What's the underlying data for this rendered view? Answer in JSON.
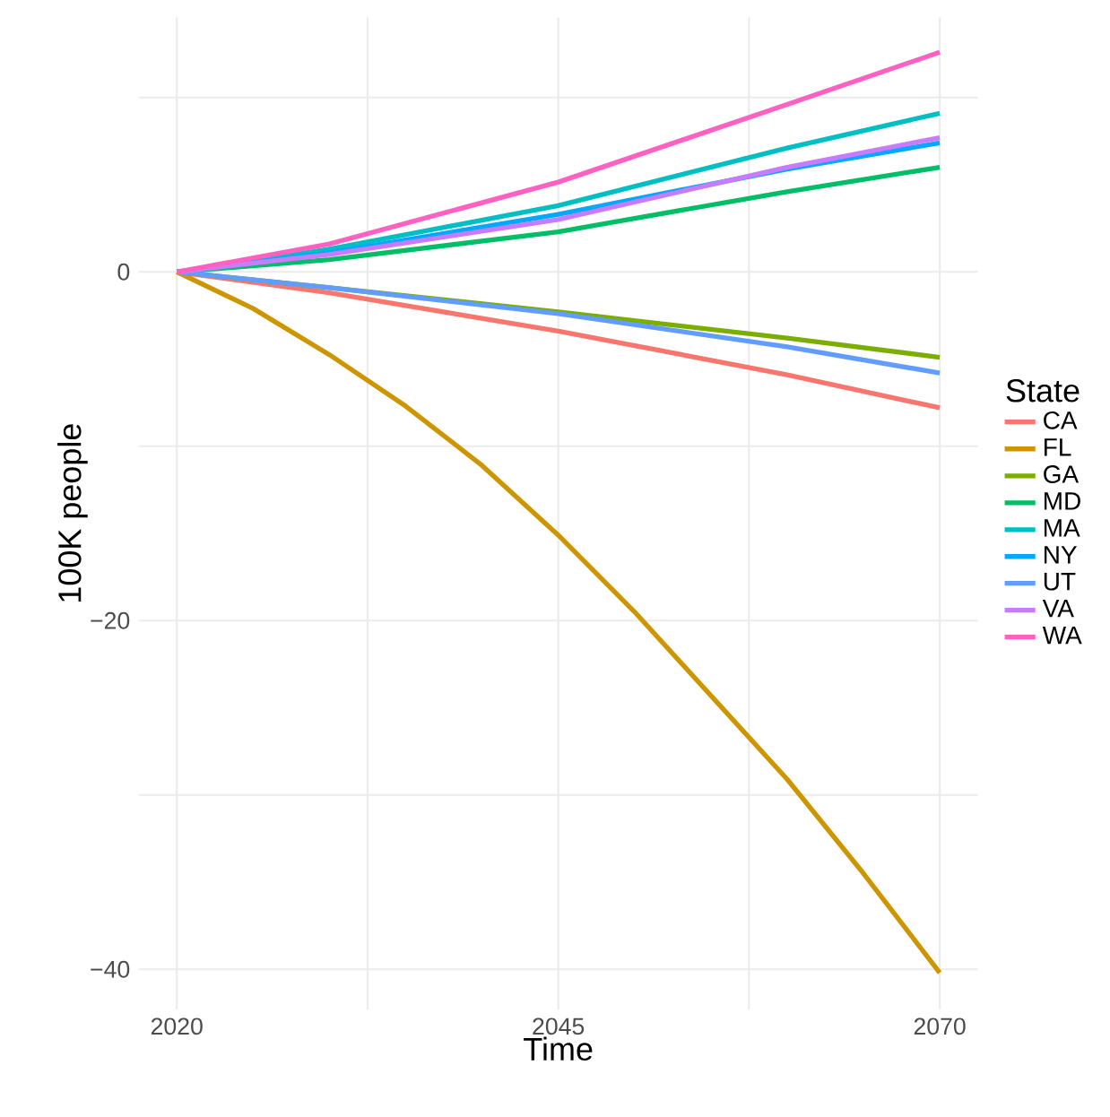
{
  "chart_data": {
    "type": "line",
    "xlabel": "Time",
    "ylabel": "100K people",
    "legend_title": "State",
    "legend": "right",
    "grid": true,
    "line_style": "solid",
    "marker": "none",
    "xlim": [
      2017.5,
      2072.5
    ],
    "ylim": [
      -42.3,
      14.6
    ],
    "xticks": [
      2020,
      {
        "value": 2032.5,
        "label": null
      },
      2045,
      {
        "value": 2057.5,
        "label": null
      },
      2070
    ],
    "yticks": [
      {
        "value": -40,
        "label": "−40"
      },
      {
        "value": -30,
        "label": null
      },
      {
        "value": -20,
        "label": "−20"
      },
      {
        "value": -10,
        "label": null
      },
      0,
      {
        "value": 10,
        "label": null
      }
    ],
    "series": [
      {
        "name": "CA",
        "color": "#f8766d",
        "x": [
          2020,
          2030,
          2045,
          2060,
          2070
        ],
        "values": [
          0,
          -1.2,
          -3.4,
          -5.9,
          -7.8
        ]
      },
      {
        "name": "FL",
        "color": "#cd9600",
        "x": [
          2020,
          2025,
          2030,
          2035,
          2040,
          2045,
          2050,
          2055,
          2060,
          2065,
          2070
        ],
        "values": [
          0,
          -2.1,
          -4.75,
          -7.7,
          -11.1,
          -15.1,
          -19.5,
          -24.3,
          -29.1,
          -34.5,
          -40.2
        ]
      },
      {
        "name": "GA",
        "color": "#7cae00",
        "x": [
          2020,
          2030,
          2045,
          2060,
          2070
        ],
        "values": [
          0,
          -0.9,
          -2.3,
          -3.8,
          -4.9
        ]
      },
      {
        "name": "MD",
        "color": "#00be67",
        "x": [
          2020,
          2030,
          2045,
          2060,
          2070
        ],
        "values": [
          0,
          0.7,
          2.3,
          4.6,
          6.0
        ]
      },
      {
        "name": "MA",
        "color": "#00bfc4",
        "x": [
          2020,
          2030,
          2045,
          2060,
          2070
        ],
        "values": [
          0,
          1.3,
          3.8,
          7.1,
          9.1
        ]
      },
      {
        "name": "NY",
        "color": "#00a9ff",
        "x": [
          2020,
          2030,
          2045,
          2060,
          2070
        ],
        "values": [
          0,
          1.1,
          3.3,
          5.9,
          7.4
        ]
      },
      {
        "name": "UT",
        "color": "#619cff",
        "x": [
          2020,
          2030,
          2045,
          2060,
          2070
        ],
        "values": [
          0,
          -0.9,
          -2.4,
          -4.3,
          -5.8
        ]
      },
      {
        "name": "VA",
        "color": "#c77cff",
        "x": [
          2020,
          2030,
          2045,
          2060,
          2070
        ],
        "values": [
          0,
          1.0,
          3.0,
          6.0,
          7.7
        ]
      },
      {
        "name": "WA",
        "color": "#ff61c3",
        "x": [
          2020,
          2030,
          2045,
          2060,
          2070
        ],
        "values": [
          0,
          1.6,
          5.15,
          9.6,
          12.6
        ]
      }
    ]
  }
}
